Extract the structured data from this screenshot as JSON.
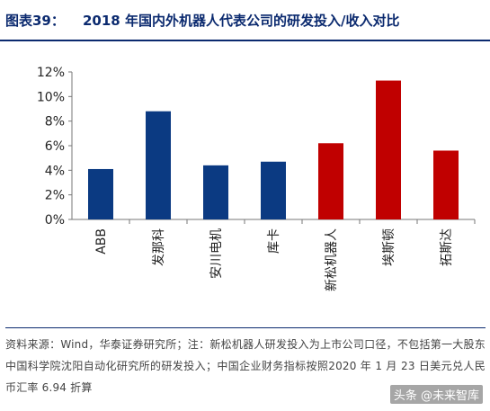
{
  "header": {
    "figure_label": "图表39：",
    "title": "2018 年国内外机器人代表公司的研发投入/收入对比"
  },
  "chart_data": {
    "type": "bar",
    "categories": [
      "ABB",
      "发那科",
      "安川电机",
      "库卡",
      "新松机器人",
      "埃斯顿",
      "拓斯达"
    ],
    "values": [
      0.041,
      0.088,
      0.044,
      0.047,
      0.062,
      0.113,
      0.056
    ],
    "bar_colors": [
      "#0b3a82",
      "#0b3a82",
      "#0b3a82",
      "#0b3a82",
      "#c00000",
      "#c00000",
      "#c00000"
    ],
    "ylim": [
      0,
      0.12
    ],
    "yticks": [
      0,
      0.02,
      0.04,
      0.06,
      0.08,
      0.1,
      0.12
    ],
    "ytick_labels": [
      "0%",
      "2%",
      "4%",
      "6%",
      "8%",
      "10%",
      "12%"
    ],
    "grid": false,
    "title": "",
    "xlabel": "",
    "ylabel": ""
  },
  "footer": {
    "source": "资料来源：Wind，华泰证券研究所；注：新松机器人研发投入为上市公司口径，不包括第一大股东中国科学院沈阳自动化研究所的研发投入；中国企业财务指标按照2020 年 1 月 23 日美元兑人民币汇率 6.94 折算"
  },
  "watermark": "头条 @未来智库"
}
